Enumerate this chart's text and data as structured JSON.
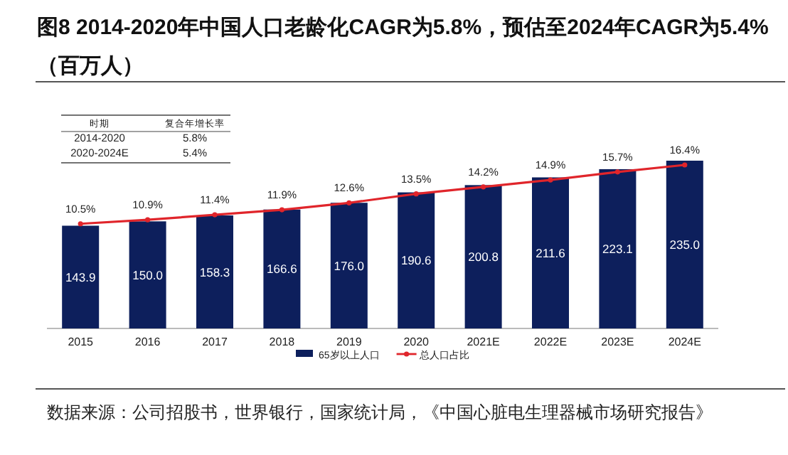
{
  "chart_data": {
    "type": "bar",
    "title": "图8 2014-2020年中国人口老龄化CAGR为5.8%，预估至2024年CAGR为5.4%（百万人）",
    "categories": [
      "2015",
      "2016",
      "2017",
      "2018",
      "2019",
      "2020",
      "2021E",
      "2022E",
      "2023E",
      "2024E"
    ],
    "series": [
      {
        "name": "65岁以上人口",
        "color": "#0d1f5c",
        "values": [
          143.9,
          150.0,
          158.3,
          166.6,
          176.0,
          190.6,
          200.8,
          211.6,
          223.1,
          235.0
        ],
        "value_labels": [
          "143.9",
          "150.0",
          "158.3",
          "166.6",
          "176.0",
          "190.6",
          "200.8",
          "211.6",
          "223.1",
          "235.0"
        ]
      },
      {
        "name": "总人口占比",
        "type": "line",
        "axis": "y2",
        "marker": "circle",
        "color": "#e0252b",
        "values": [
          10.5,
          10.9,
          11.4,
          11.9,
          12.6,
          13.5,
          14.2,
          14.9,
          15.7,
          16.4
        ],
        "value_labels": [
          "10.5%",
          "10.9%",
          "11.4%",
          "11.9%",
          "12.6%",
          "13.5%",
          "14.2%",
          "14.9%",
          "15.7%",
          "16.4%"
        ]
      }
    ],
    "legend": "bottom",
    "annotations": [
      "时期",
      "复合年增长率",
      "2014-2020",
      "5.8%",
      "2020-2024E",
      "5.4%",
      "数据来源：公司招股书，世界银行，国家统计局，《中国心脏电生理器械市场研究报告》"
    ]
  }
}
